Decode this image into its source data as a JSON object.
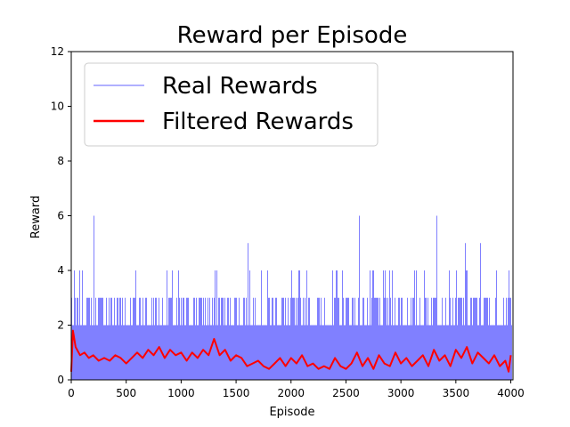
{
  "chart_data": {
    "type": "line",
    "title": "Reward per Episode",
    "xlabel": "Episode",
    "ylabel": "Reward",
    "xlim": [
      0,
      4020
    ],
    "ylim": [
      0,
      12
    ],
    "xticks": [
      0,
      500,
      1000,
      1500,
      2000,
      2500,
      3000,
      3500,
      4000
    ],
    "yticks": [
      0,
      2,
      4,
      6,
      8,
      10,
      12
    ],
    "grid": false,
    "legend_placement": "top-left",
    "series": [
      {
        "name": "Real Rewards",
        "color": "#8080ff",
        "style": "thin-line",
        "x_range": [
          0,
          4000
        ],
        "base_level": 2,
        "note_values": [
          0,
          1,
          2,
          3,
          4
        ],
        "peaks": [
          {
            "x": 205,
            "y": 6
          },
          {
            "x": 1605,
            "y": 5
          },
          {
            "x": 2620,
            "y": 6
          },
          {
            "x": 3325,
            "y": 6
          },
          {
            "x": 3580,
            "y": 5
          },
          {
            "x": 3720,
            "y": 5
          }
        ]
      },
      {
        "name": "Filtered Rewards",
        "color": "#ff0000",
        "style": "thick-line",
        "x": [
          0,
          15,
          40,
          80,
          120,
          160,
          200,
          250,
          300,
          350,
          400,
          450,
          500,
          550,
          600,
          650,
          700,
          750,
          800,
          850,
          900,
          950,
          1000,
          1050,
          1100,
          1150,
          1200,
          1250,
          1300,
          1350,
          1400,
          1450,
          1500,
          1550,
          1600,
          1650,
          1700,
          1750,
          1800,
          1850,
          1900,
          1950,
          2000,
          2050,
          2100,
          2150,
          2200,
          2250,
          2300,
          2350,
          2400,
          2450,
          2500,
          2550,
          2600,
          2650,
          2700,
          2750,
          2800,
          2850,
          2900,
          2950,
          3000,
          3050,
          3100,
          3150,
          3200,
          3250,
          3300,
          3350,
          3400,
          3450,
          3500,
          3550,
          3600,
          3650,
          3700,
          3750,
          3800,
          3850,
          3900,
          3950,
          3980,
          4000
        ],
        "values": [
          0.3,
          1.8,
          1.2,
          0.9,
          1.0,
          0.8,
          0.9,
          0.7,
          0.8,
          0.7,
          0.9,
          0.8,
          0.6,
          0.8,
          1.0,
          0.8,
          1.1,
          0.9,
          1.2,
          0.8,
          1.1,
          0.9,
          1.0,
          0.7,
          1.0,
          0.8,
          1.1,
          0.9,
          1.5,
          0.9,
          1.1,
          0.7,
          0.9,
          0.8,
          0.5,
          0.6,
          0.7,
          0.5,
          0.4,
          0.6,
          0.8,
          0.5,
          0.8,
          0.6,
          0.9,
          0.5,
          0.6,
          0.4,
          0.5,
          0.4,
          0.8,
          0.5,
          0.4,
          0.6,
          1.0,
          0.5,
          0.8,
          0.4,
          0.9,
          0.6,
          0.5,
          1.0,
          0.6,
          0.8,
          0.5,
          0.7,
          0.9,
          0.5,
          1.1,
          0.7,
          0.9,
          0.5,
          1.1,
          0.8,
          1.2,
          0.6,
          1.0,
          0.8,
          0.6,
          0.9,
          0.5,
          0.7,
          0.3,
          0.9
        ]
      }
    ]
  }
}
